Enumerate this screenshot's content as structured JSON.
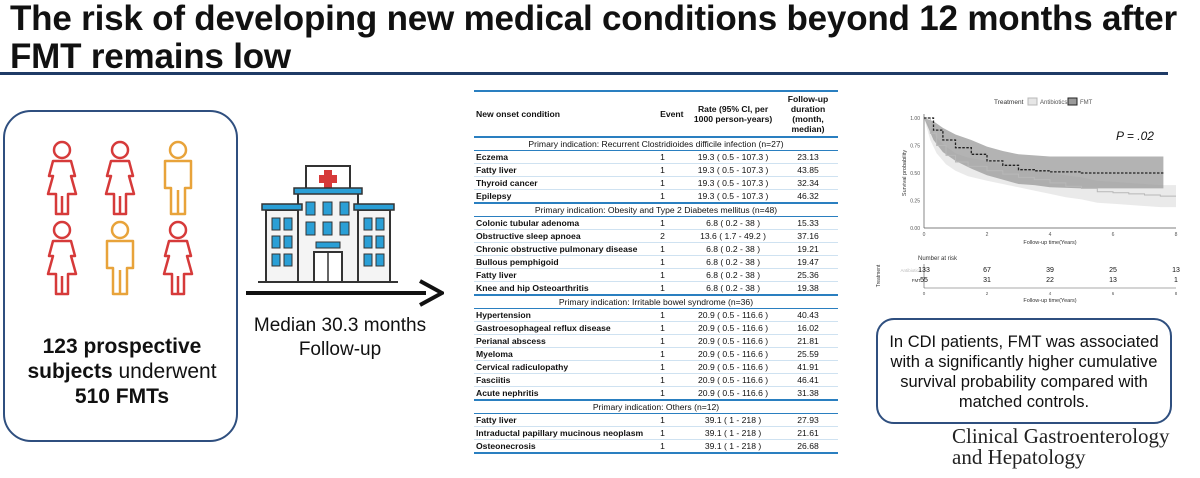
{
  "title": "The risk of developing new medical conditions beyond 12 months after FMT remains low",
  "left_card": {
    "line1": "123 prospective",
    "line2_bold": "subjects",
    "line2_rest": " underwent",
    "line3": "510 FMTs"
  },
  "median": "Median 30.3 months Follow-up",
  "table": {
    "headers": {
      "condition": "New onset condition",
      "event": "Event",
      "rate": "Rate (95% CI, per 1000 person-years)",
      "followup": "Follow-up duration (month, median)"
    },
    "sections": [
      {
        "title": "Primary indication: Recurrent Clostridioides difficile infection (n=27)",
        "rows": [
          {
            "condition": "Eczema",
            "event": "1",
            "rate": "19.3 ( 0.5 - 107.3 )",
            "followup": "23.13"
          },
          {
            "condition": "Fatty liver",
            "event": "1",
            "rate": "19.3 ( 0.5 - 107.3 )",
            "followup": "43.85"
          },
          {
            "condition": "Thyroid cancer",
            "event": "1",
            "rate": "19.3 ( 0.5 - 107.3 )",
            "followup": "32.34"
          },
          {
            "condition": "Epilepsy",
            "event": "1",
            "rate": "19.3 ( 0.5 - 107.3 )",
            "followup": "46.32"
          }
        ]
      },
      {
        "title": "Primary indication: Obesity and Type 2 Diabetes mellitus (n=48)",
        "rows": [
          {
            "condition": "Colonic tubular adenoma",
            "event": "1",
            "rate": "6.8 ( 0.2 - 38 )",
            "followup": "15.33"
          },
          {
            "condition": "Obstructive sleep apnoea",
            "event": "2",
            "rate": "13.6 ( 1.7 - 49.2 )",
            "followup": "37.16"
          },
          {
            "condition": "Chronic obstructive pulmonary disease",
            "event": "1",
            "rate": "6.8 ( 0.2 - 38 )",
            "followup": "19.21"
          },
          {
            "condition": "Bullous pemphigoid",
            "event": "1",
            "rate": "6.8 ( 0.2 - 38 )",
            "followup": "19.47"
          },
          {
            "condition": "Fatty liver",
            "event": "1",
            "rate": "6.8 ( 0.2 - 38 )",
            "followup": "25.36"
          },
          {
            "condition": "Knee and hip Osteoarthritis",
            "event": "1",
            "rate": "6.8 ( 0.2 - 38 )",
            "followup": "19.38"
          }
        ]
      },
      {
        "title": "Primary indication: Irritable bowel syndrome (n=36)",
        "rows": [
          {
            "condition": "Hypertension",
            "event": "1",
            "rate": "20.9 ( 0.5 - 116.6 )",
            "followup": "40.43"
          },
          {
            "condition": "Gastroesophageal reflux disease",
            "event": "1",
            "rate": "20.9 ( 0.5 - 116.6 )",
            "followup": "16.02"
          },
          {
            "condition": "Perianal abscess",
            "event": "1",
            "rate": "20.9 ( 0.5 - 116.6 )",
            "followup": "21.81"
          },
          {
            "condition": "Myeloma",
            "event": "1",
            "rate": "20.9 ( 0.5 - 116.6 )",
            "followup": "25.59"
          },
          {
            "condition": "Cervical radiculopathy",
            "event": "1",
            "rate": "20.9 ( 0.5 - 116.6 )",
            "followup": "41.91"
          },
          {
            "condition": "Fasciitis",
            "event": "1",
            "rate": "20.9 ( 0.5 - 116.6 )",
            "followup": "46.41"
          },
          {
            "condition": "Acute nephritis",
            "event": "1",
            "rate": "20.9 ( 0.5 - 116.6 )",
            "followup": "31.38"
          }
        ]
      },
      {
        "title": "Primary indication: Others (n=12)",
        "rows": [
          {
            "condition": "Fatty liver",
            "event": "1",
            "rate": "39.1 ( 1 - 218 )",
            "followup": "27.93"
          },
          {
            "condition": "Intraductal papillary mucinous neoplasm",
            "event": "1",
            "rate": "39.1 ( 1 - 218 )",
            "followup": "21.61"
          },
          {
            "condition": "Osteonecrosis",
            "event": "1",
            "rate": "39.1 ( 1 - 218 )",
            "followup": "26.68"
          }
        ]
      }
    ]
  },
  "chart_data": {
    "type": "line",
    "legend_title": "Treatment",
    "legend_position": "top",
    "p_value": "P = .02",
    "xlabel": "Follow-up time(Years)",
    "ylabel": "Survival probability",
    "xlim": [
      0,
      8
    ],
    "ylim": [
      0,
      1
    ],
    "xticks": [
      "0",
      "2",
      "4",
      "6",
      "8"
    ],
    "yticks": [
      "0.00",
      "0.25",
      "0.50",
      "0.75",
      "1.00"
    ],
    "series": [
      {
        "name": "Antibiotics",
        "color": "#b8b8b8",
        "x": [
          0,
          0.2,
          0.4,
          0.7,
          1.0,
          1.4,
          2.0,
          2.5,
          3.0,
          3.5,
          4.0,
          4.5,
          5.0,
          5.5,
          6.0,
          6.5,
          7.0,
          7.5,
          8.0
        ],
        "y": [
          1.0,
          0.86,
          0.75,
          0.66,
          0.6,
          0.56,
          0.52,
          0.49,
          0.46,
          0.44,
          0.41,
          0.38,
          0.36,
          0.33,
          0.32,
          0.31,
          0.3,
          0.29,
          0.29
        ],
        "ci_low": [
          1.0,
          0.8,
          0.68,
          0.58,
          0.52,
          0.47,
          0.43,
          0.4,
          0.37,
          0.34,
          0.31,
          0.28,
          0.26,
          0.23,
          0.22,
          0.21,
          0.2,
          0.19,
          0.19
        ],
        "ci_high": [
          1.0,
          0.92,
          0.82,
          0.74,
          0.68,
          0.64,
          0.61,
          0.58,
          0.55,
          0.53,
          0.5,
          0.48,
          0.46,
          0.43,
          0.42,
          0.41,
          0.4,
          0.39,
          0.39
        ]
      },
      {
        "name": "FMT",
        "color": "#222222",
        "x": [
          0,
          0.3,
          0.6,
          1.0,
          1.5,
          2.0,
          2.5,
          3.0,
          3.5,
          4.0,
          5.0,
          6.0,
          7.0,
          7.6
        ],
        "y": [
          1.0,
          0.89,
          0.8,
          0.73,
          0.67,
          0.61,
          0.57,
          0.53,
          0.52,
          0.51,
          0.5,
          0.5,
          0.5,
          0.5
        ],
        "ci_low": [
          1.0,
          0.8,
          0.69,
          0.61,
          0.54,
          0.48,
          0.44,
          0.4,
          0.39,
          0.37,
          0.36,
          0.36,
          0.36,
          0.36
        ],
        "ci_high": [
          1.0,
          0.97,
          0.91,
          0.85,
          0.8,
          0.74,
          0.7,
          0.67,
          0.66,
          0.65,
          0.65,
          0.65,
          0.65,
          0.65
        ]
      }
    ],
    "risk_table": {
      "title": "Number at risk",
      "ylabel": "Treatment",
      "xlabel": "Follow-up time(Years)",
      "times": [
        "0",
        "2",
        "4",
        "6",
        "8"
      ],
      "rows": [
        {
          "name": "Antibiotics",
          "values": [
            "133",
            "67",
            "39",
            "25",
            "13"
          ]
        },
        {
          "name": "FMT",
          "values": [
            "55",
            "31",
            "22",
            "13",
            "1"
          ]
        }
      ]
    }
  },
  "note": "In CDI patients, FMT was associated with a significantly higher cumulative survival probability compared with matched controls.",
  "journal": {
    "line1": "Clinical Gastroenterology",
    "line2": "and Hepatology"
  },
  "colors": {
    "accent": "#2a7fc0",
    "card_border": "#2f4f7f",
    "female_icon": "#d63a3a",
    "male_icon": "#e8a33a",
    "hospital_blue": "#2a9fd6"
  }
}
